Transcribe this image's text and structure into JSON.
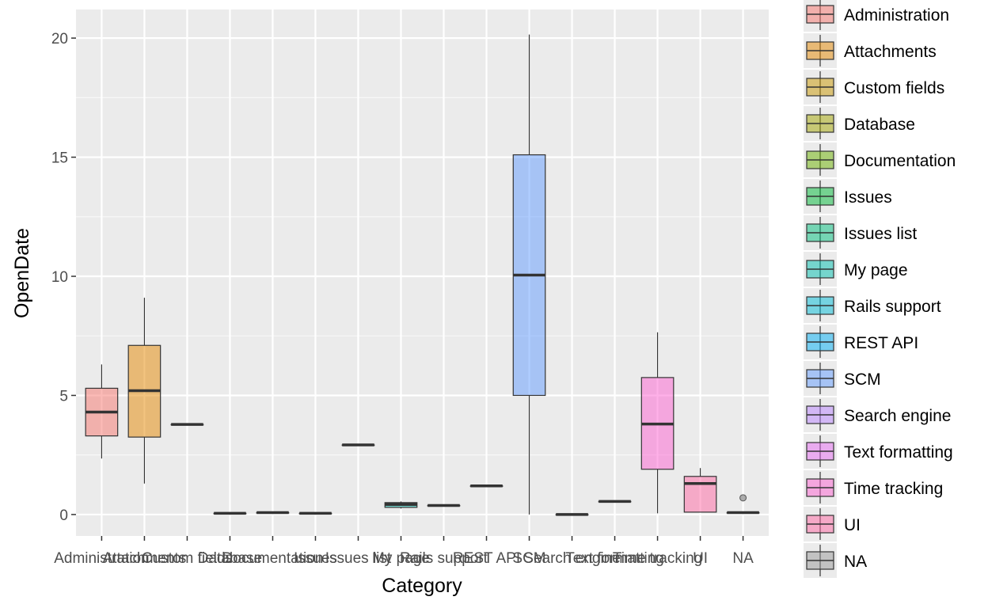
{
  "chart_data": {
    "type": "boxplot",
    "title": "",
    "xlabel": "Category",
    "ylabel": "OpenDate",
    "ylim": [
      -0.9,
      21.2
    ],
    "y_ticks": [
      0,
      5,
      10,
      15,
      20
    ],
    "grid": true,
    "legend_position": "right",
    "categories": [
      "Administration",
      "Attachments",
      "Custom fields",
      "Database",
      "Documentation",
      "Issues",
      "Issues list",
      "My page",
      "Rails support",
      "REST API",
      "SCM",
      "Search engine",
      "Text formatting",
      "Time tracking",
      "UI",
      "NA"
    ],
    "colors": [
      "#F8766D",
      "#E58700",
      "#C99800",
      "#A3A500",
      "#6BB100",
      "#00BA38",
      "#00BF7D",
      "#00C0AF",
      "#00BCD8",
      "#00B0F6",
      "#619CFF",
      "#B983FF",
      "#E76BF3",
      "#FD61D1",
      "#FF67A4",
      "#999999"
    ],
    "boxes": [
      {
        "category": "Administration",
        "min": 2.35,
        "q1": 3.3,
        "median": 4.3,
        "q3": 5.3,
        "max": 6.3,
        "outliers": []
      },
      {
        "category": "Attachments",
        "min": 1.3,
        "q1": 3.25,
        "median": 5.2,
        "q3": 7.1,
        "max": 9.1,
        "outliers": []
      },
      {
        "category": "Custom fields",
        "min": 3.78,
        "q1": 3.78,
        "median": 3.78,
        "q3": 3.78,
        "max": 3.78,
        "outliers": []
      },
      {
        "category": "Database",
        "min": 0.05,
        "q1": 0.05,
        "median": 0.05,
        "q3": 0.05,
        "max": 0.05,
        "outliers": []
      },
      {
        "category": "Documentation",
        "min": 0.08,
        "q1": 0.08,
        "median": 0.08,
        "q3": 0.08,
        "max": 0.08,
        "outliers": []
      },
      {
        "category": "Issues",
        "min": 0.05,
        "q1": 0.05,
        "median": 0.05,
        "q3": 0.05,
        "max": 0.05,
        "outliers": []
      },
      {
        "category": "Issues list",
        "min": 2.92,
        "q1": 2.92,
        "median": 2.92,
        "q3": 2.92,
        "max": 2.92,
        "outliers": []
      },
      {
        "category": "My page",
        "min": 0.25,
        "q1": 0.3,
        "median": 0.42,
        "q3": 0.5,
        "max": 0.55,
        "outliers": []
      },
      {
        "category": "Rails support",
        "min": 0.38,
        "q1": 0.38,
        "median": 0.38,
        "q3": 0.38,
        "max": 0.38,
        "outliers": []
      },
      {
        "category": "REST API",
        "min": 1.2,
        "q1": 1.2,
        "median": 1.2,
        "q3": 1.2,
        "max": 1.2,
        "outliers": []
      },
      {
        "category": "SCM",
        "min": 0.0,
        "q1": 5.0,
        "median": 10.05,
        "q3": 15.1,
        "max": 20.15,
        "outliers": []
      },
      {
        "category": "Search engine",
        "min": 0.0,
        "q1": 0.0,
        "median": 0.0,
        "q3": 0.0,
        "max": 0.0,
        "outliers": []
      },
      {
        "category": "Text formatting",
        "min": 0.55,
        "q1": 0.55,
        "median": 0.55,
        "q3": 0.55,
        "max": 0.55,
        "outliers": []
      },
      {
        "category": "Time tracking",
        "min": 0.05,
        "q1": 1.9,
        "median": 3.8,
        "q3": 5.75,
        "max": 7.65,
        "outliers": []
      },
      {
        "category": "UI",
        "min": 0.08,
        "q1": 0.1,
        "median": 1.3,
        "q3": 1.6,
        "max": 1.95,
        "outliers": []
      },
      {
        "category": "NA",
        "min": 0.08,
        "q1": 0.08,
        "median": 0.08,
        "q3": 0.08,
        "max": 0.08,
        "outliers": [
          0.7
        ]
      }
    ],
    "legend_title": "",
    "legend_entries": [
      "Administration",
      "Attachments",
      "Custom fields",
      "Database",
      "Documentation",
      "Issues",
      "Issues list",
      "My page",
      "Rails support",
      "REST API",
      "SCM",
      "Search engine",
      "Text formatting",
      "Time tracking",
      "UI",
      "NA"
    ]
  }
}
